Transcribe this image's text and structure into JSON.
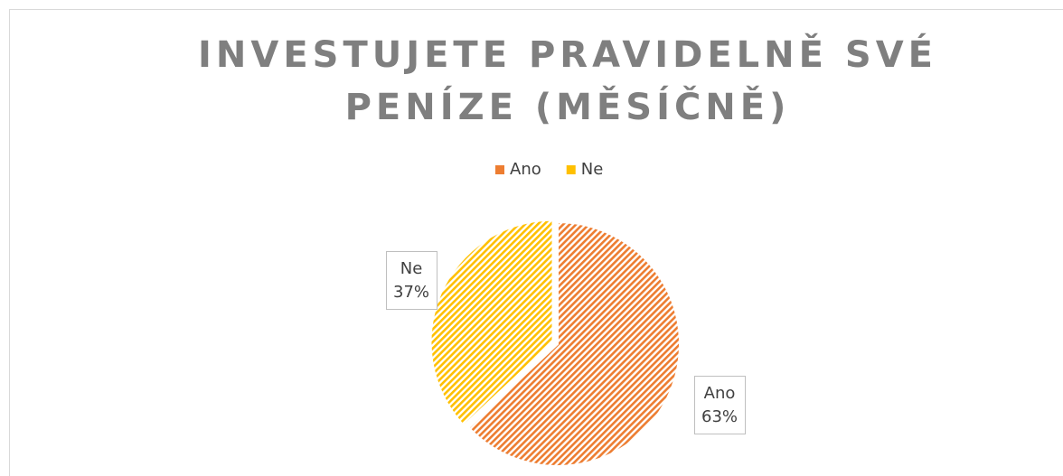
{
  "chart_data": {
    "type": "pie",
    "title": "INVESTUJETE PRAVIDELNĚ SVÉ PENÍZE (MĚSÍČNĚ)",
    "categories": [
      "Ano",
      "Ne"
    ],
    "values": [
      63,
      37
    ],
    "value_labels": [
      "63%",
      "37%"
    ],
    "colors": [
      "#ed7d31",
      "#ffc000"
    ],
    "legend": "top"
  }
}
